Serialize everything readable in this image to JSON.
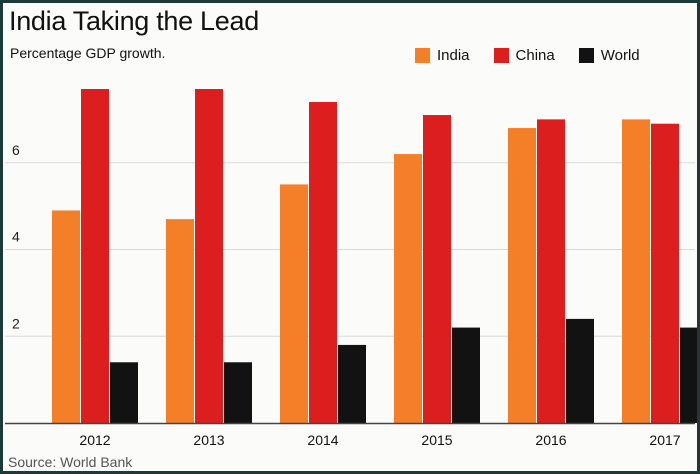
{
  "chart_data": {
    "type": "bar",
    "title": "India Taking the Lead",
    "subtitle": "Percentage GDP growth.",
    "source": "Source: World Bank",
    "xlabel": "",
    "ylabel": "",
    "categories": [
      "2012",
      "2013",
      "2014",
      "2015",
      "2016",
      "2017"
    ],
    "series": [
      {
        "name": "India",
        "color": "#f57e28",
        "values": [
          4.9,
          4.7,
          5.5,
          6.2,
          6.8,
          7.0
        ]
      },
      {
        "name": "China",
        "color": "#dd1e1e",
        "values": [
          7.7,
          7.7,
          7.4,
          7.1,
          7.0,
          6.9
        ]
      },
      {
        "name": "World",
        "color": "#121212",
        "values": [
          1.4,
          1.4,
          1.8,
          2.2,
          2.4,
          2.2
        ]
      }
    ],
    "yticks": [
      "2",
      "4",
      "6"
    ],
    "ytick_values": [
      2,
      4,
      6
    ],
    "ylim": [
      0,
      8
    ],
    "grid": true,
    "legend_position": "top-right"
  }
}
